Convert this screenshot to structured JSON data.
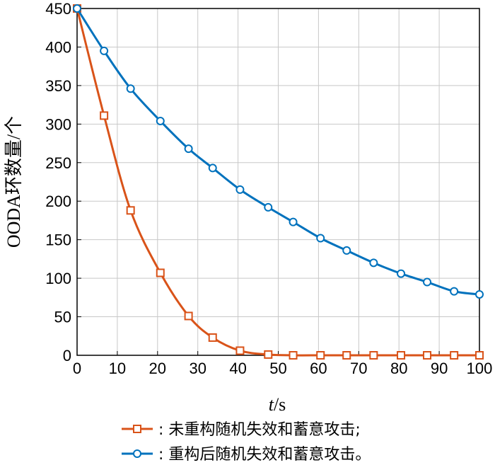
{
  "chart_data": {
    "type": "line",
    "title": "",
    "xlabel_italic": "t",
    "xlabel_unit": "/s",
    "ylabel": "OODA环数量/个",
    "xlim": [
      0,
      100
    ],
    "ylim": [
      0,
      450
    ],
    "xticks": [
      0,
      10,
      20,
      30,
      40,
      50,
      60,
      70,
      80,
      90,
      100
    ],
    "yticks": [
      0,
      50,
      100,
      150,
      200,
      250,
      300,
      350,
      400,
      450
    ],
    "grid": true,
    "legend_position": "bottom",
    "series": [
      {
        "name": ": 未重构随机失效和蓄意攻击;",
        "color": "#d95319",
        "marker": "square",
        "x": [
          0,
          6.7,
          13.3,
          20.7,
          27.7,
          33.7,
          40.5,
          47.5,
          53.7,
          60.5,
          67,
          73.7,
          80.5,
          87,
          93.7,
          100
        ],
        "y": [
          450,
          311,
          188,
          107,
          51,
          23,
          6,
          1,
          0,
          0,
          0,
          0,
          0,
          0,
          0,
          0
        ]
      },
      {
        "name": ": 重构后随机失效和蓄意攻击。",
        "color": "#0072bd",
        "marker": "circle",
        "x": [
          0,
          6.7,
          13.3,
          20.7,
          27.7,
          33.7,
          40.5,
          47.5,
          53.7,
          60.5,
          67,
          73.7,
          80.5,
          87,
          93.7,
          100
        ],
        "y": [
          450,
          395,
          346,
          304,
          268,
          243,
          215,
          192,
          173,
          152,
          136,
          120,
          106,
          95,
          83,
          79
        ]
      }
    ]
  }
}
